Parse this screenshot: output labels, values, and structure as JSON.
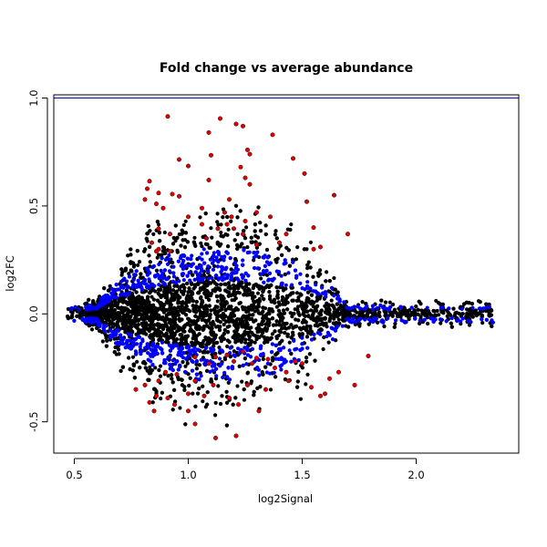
{
  "chart_data": {
    "type": "scatter",
    "title": "Fold change vs average abundance",
    "xlabel": "log2Signal",
    "ylabel": "log2FC",
    "xlim": [
      0.41,
      2.45
    ],
    "ylim": [
      -0.645,
      1.015
    ],
    "x_ticks": [
      0.5,
      1.0,
      1.5,
      2.0
    ],
    "x_tick_labels": [
      "0.5",
      "1.0",
      "1.5",
      "2.0"
    ],
    "y_ticks": [
      -0.5,
      0.0,
      0.5,
      1.0
    ],
    "y_tick_labels": [
      "-0.5",
      "0.0",
      "0.5",
      "1.0"
    ],
    "grid": false,
    "reference_line": {
      "y": 1.0,
      "color": "#0000cc"
    },
    "colors": {
      "black": "#000000",
      "blue": "#0000ff",
      "red": "#dd0000"
    },
    "series": [
      {
        "color": "#dd0000",
        "points": [
          [
            0.91,
            0.915
          ],
          [
            1.14,
            0.905
          ],
          [
            1.21,
            0.88
          ],
          [
            1.24,
            0.87
          ],
          [
            1.09,
            0.84
          ],
          [
            1.37,
            0.83
          ],
          [
            1.26,
            0.76
          ],
          [
            1.27,
            0.74
          ],
          [
            0.96,
            0.715
          ],
          [
            1.1,
            0.735
          ],
          [
            1.0,
            0.685
          ],
          [
            1.23,
            0.68
          ],
          [
            1.51,
            0.65
          ],
          [
            1.46,
            0.72
          ],
          [
            1.25,
            0.63
          ],
          [
            1.27,
            0.6
          ],
          [
            1.09,
            0.62
          ],
          [
            0.83,
            0.615
          ],
          [
            1.64,
            0.55
          ],
          [
            0.82,
            0.58
          ],
          [
            0.87,
            0.56
          ],
          [
            0.86,
            0.51
          ],
          [
            0.89,
            0.49
          ],
          [
            0.93,
            0.555
          ],
          [
            0.96,
            0.545
          ],
          [
            0.81,
            0.53
          ],
          [
            1.06,
            0.49
          ],
          [
            1.16,
            0.47
          ],
          [
            1.19,
            0.45
          ],
          [
            1.17,
            0.415
          ],
          [
            1.13,
            0.395
          ],
          [
            1.18,
            0.53
          ],
          [
            1.25,
            0.43
          ],
          [
            1.3,
            0.47
          ],
          [
            1.06,
            0.415
          ],
          [
            1.2,
            0.395
          ],
          [
            1.36,
            0.45
          ],
          [
            1.52,
            0.52
          ],
          [
            1.55,
            0.4
          ],
          [
            1.43,
            0.37
          ],
          [
            1.7,
            0.37
          ],
          [
            0.87,
            0.395
          ],
          [
            0.92,
            0.37
          ],
          [
            1.0,
            0.45
          ],
          [
            1.3,
            0.32
          ],
          [
            1.08,
            0.35
          ],
          [
            1.4,
            0.33
          ],
          [
            1.58,
            0.31
          ],
          [
            0.84,
            0.33
          ],
          [
            0.87,
            0.3
          ],
          [
            0.92,
            0.29
          ],
          [
            0.86,
            0.29
          ],
          [
            1.24,
            0.37
          ],
          [
            1.55,
            0.3
          ],
          [
            1.24,
            -0.175
          ],
          [
            1.17,
            -0.19
          ],
          [
            1.12,
            -0.2
          ],
          [
            1.03,
            -0.2
          ],
          [
            1.3,
            -0.205
          ],
          [
            1.28,
            -0.23
          ],
          [
            1.35,
            -0.21
          ],
          [
            1.47,
            -0.22
          ],
          [
            1.5,
            -0.23
          ],
          [
            1.38,
            -0.25
          ],
          [
            1.2,
            -0.22
          ],
          [
            1.09,
            -0.23
          ],
          [
            1.43,
            -0.27
          ],
          [
            0.9,
            -0.27
          ],
          [
            0.95,
            -0.28
          ],
          [
            1.03,
            -0.31
          ],
          [
            1.11,
            -0.33
          ],
          [
            0.87,
            -0.31
          ],
          [
            0.81,
            -0.33
          ],
          [
            1.07,
            -0.38
          ],
          [
            1.18,
            -0.39
          ],
          [
            1.22,
            -0.42
          ],
          [
            0.91,
            -0.39
          ],
          [
            0.86,
            -0.38
          ],
          [
            1.0,
            -0.37
          ],
          [
            1.34,
            -0.35
          ],
          [
            1.6,
            -0.37
          ],
          [
            1.58,
            -0.38
          ],
          [
            1.66,
            -0.27
          ],
          [
            1.73,
            -0.33
          ],
          [
            0.94,
            -0.42
          ],
          [
            0.83,
            -0.41
          ],
          [
            1.0,
            -0.45
          ],
          [
            1.31,
            -0.45
          ],
          [
            0.85,
            -0.45
          ],
          [
            1.03,
            -0.51
          ],
          [
            1.12,
            -0.575
          ],
          [
            1.21,
            -0.565
          ],
          [
            1.54,
            -0.34
          ],
          [
            1.62,
            -0.3
          ],
          [
            1.79,
            -0.195
          ],
          [
            1.44,
            -0.31
          ],
          [
            0.77,
            -0.35
          ],
          [
            1.26,
            -0.33
          ]
        ]
      }
    ]
  }
}
